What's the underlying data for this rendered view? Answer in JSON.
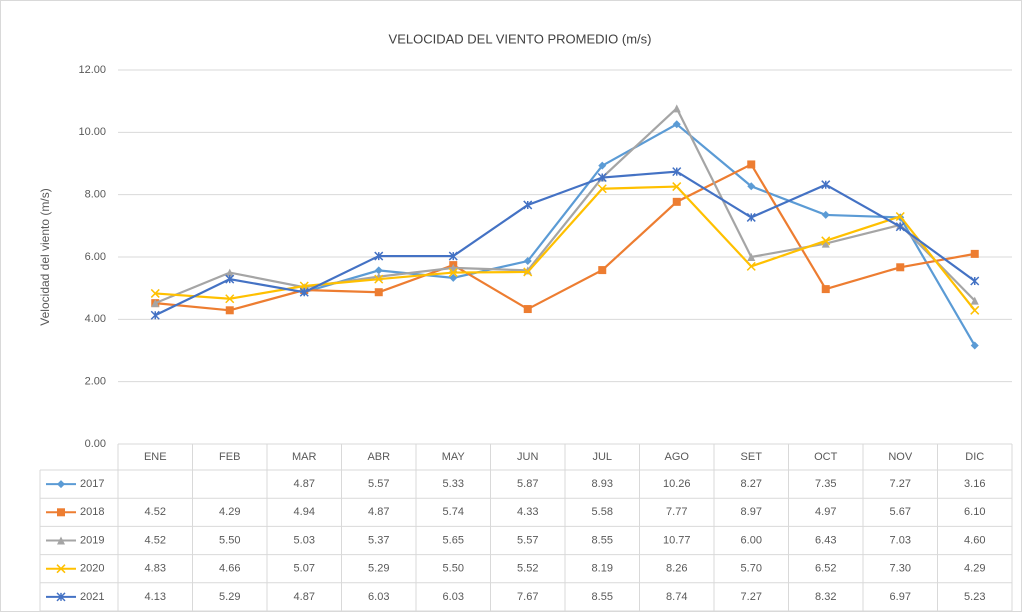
{
  "chart_data": {
    "type": "line",
    "title": "VELOCIDAD DEL VIENTO PROMEDIO (m/s)",
    "y_label": "Velocidad del viento (m/s)",
    "categories": [
      "ENE",
      "FEB",
      "MAR",
      "ABR",
      "MAY",
      "JUN",
      "JUL",
      "AGO",
      "SET",
      "OCT",
      "NOV",
      "DIC"
    ],
    "ylim": [
      0,
      12
    ],
    "yticks": [
      {
        "value": 0,
        "label": "0.00"
      },
      {
        "value": 2,
        "label": "2.00"
      },
      {
        "value": 4,
        "label": "4.00"
      },
      {
        "value": 6,
        "label": "6.00"
      },
      {
        "value": 8,
        "label": "8.00"
      },
      {
        "value": 10,
        "label": "10.00"
      },
      {
        "value": 12,
        "label": "12.00"
      }
    ],
    "grid": true,
    "series": [
      {
        "name": "2017",
        "color": "#5b9bd5",
        "marker": "diamond",
        "values": [
          null,
          null,
          4.87,
          5.57,
          5.33,
          5.87,
          8.93,
          10.26,
          8.27,
          7.35,
          7.27,
          3.16
        ],
        "value_labels": [
          null,
          null,
          "4.87",
          "5.57",
          "5.33",
          "5.87",
          "8.93",
          "10.26",
          "8.27",
          "7.35",
          "7.27",
          "3.16"
        ]
      },
      {
        "name": "2018",
        "color": "#ed7d31",
        "marker": "square",
        "values": [
          4.52,
          4.29,
          4.94,
          4.87,
          5.74,
          4.33,
          5.58,
          7.77,
          8.97,
          4.97,
          5.67,
          6.1
        ],
        "value_labels": [
          "4.52",
          "4.29",
          "4.94",
          "4.87",
          "5.74",
          "4.33",
          "5.58",
          "7.77",
          "8.97",
          "4.97",
          "5.67",
          "6.10"
        ]
      },
      {
        "name": "2019",
        "color": "#a5a5a5",
        "marker": "triangle",
        "values": [
          4.52,
          5.5,
          5.03,
          5.37,
          5.65,
          5.57,
          8.55,
          10.77,
          6,
          6.43,
          7.03,
          4.6
        ],
        "value_labels": [
          "4.52",
          "5.50",
          "5.03",
          "5.37",
          "5.65",
          "5.57",
          "8.55",
          "10.77",
          "6.00",
          "6.43",
          "7.03",
          "4.60"
        ]
      },
      {
        "name": "2020",
        "color": "#ffc000",
        "marker": "x",
        "values": [
          4.83,
          4.66,
          5.07,
          5.29,
          5.5,
          5.52,
          8.19,
          8.26,
          5.7,
          6.52,
          7.3,
          4.29
        ],
        "value_labels": [
          "4.83",
          "4.66",
          "5.07",
          "5.29",
          "5.50",
          "5.52",
          "8.19",
          "8.26",
          "5.70",
          "6.52",
          "7.30",
          "4.29"
        ]
      },
      {
        "name": "2021",
        "color": "#4472c4",
        "marker": "star",
        "values": [
          4.13,
          5.29,
          4.87,
          6.03,
          6.03,
          7.67,
          8.55,
          8.74,
          7.27,
          8.32,
          6.97,
          5.23
        ],
        "value_labels": [
          "4.13",
          "5.29",
          "4.87",
          "6.03",
          "6.03",
          "7.67",
          "8.55",
          "8.74",
          "7.27",
          "8.32",
          "6.97",
          "5.23"
        ]
      }
    ]
  }
}
